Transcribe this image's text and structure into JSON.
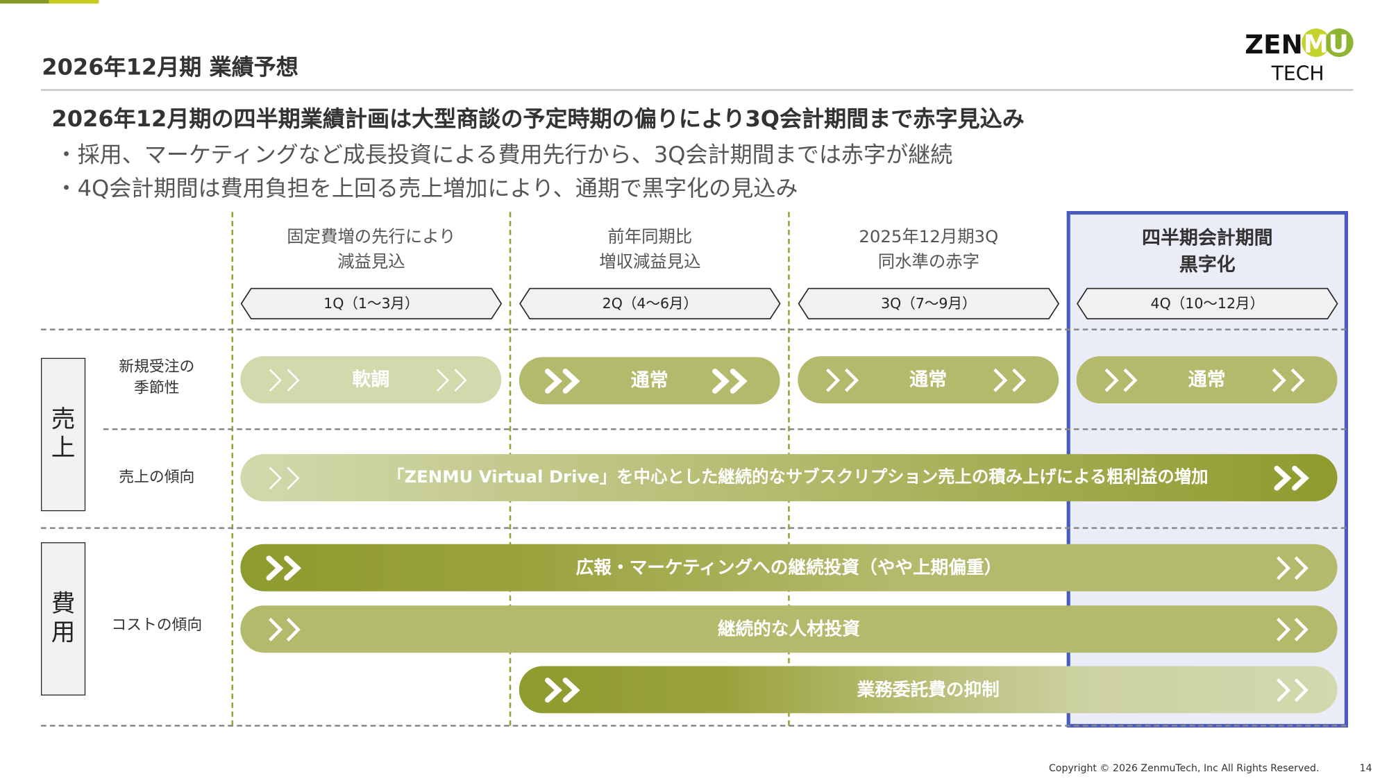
{
  "header": {
    "title": "2026年12月期 業績予想",
    "logo_text": "ZENMU TECH"
  },
  "summary": {
    "headline": "2026年12月期の四半期業績計画は大型商談の予定時期の偏りにより3Q会計期間まで赤字見込み",
    "bullets": [
      "・採用、マーケティングなど成長投資による費用先行から、3Q会計期間までは赤字が継続",
      "・4Q会計期間は費用負担を上回る売上増加により、通期で黒字化の見込み"
    ]
  },
  "columns": [
    {
      "note": [
        "固定費増の先行により",
        "減益見込"
      ],
      "quarter": "1Q（1～3月）"
    },
    {
      "note": [
        "前年同期比",
        "増収減益見込"
      ],
      "quarter": "2Q（4～6月）"
    },
    {
      "note": [
        "2025年12月期3Q",
        "同水準の赤字"
      ],
      "quarter": "3Q（7～9月）"
    },
    {
      "note": [
        "四半期会計期間",
        "黒字化"
      ],
      "quarter": "4Q（10～12月）",
      "highlighted": true
    }
  ],
  "sections": {
    "sales": {
      "label": [
        "売",
        "上"
      ],
      "rows": {
        "seasonality": [
          "新規受注の",
          "季節性"
        ],
        "trend": "売上の傾向"
      }
    },
    "costs": {
      "label": [
        "費",
        "用"
      ],
      "rows": {
        "trend": "コストの傾向"
      }
    }
  },
  "bars": {
    "seasonality": [
      "軟調",
      "通常",
      "通常",
      "通常"
    ],
    "sales_trend": "「ZENMU Virtual Drive」を中心とした継続的なサブスクリプション売上の積み上げによる粗利益の増加",
    "marketing": "広報・マーケティングへの継続投資（やや上期偏重）",
    "personnel": "継続的な人材投資",
    "outsourcing": "業務委託費の抑制"
  },
  "colors": {
    "accent_dark": "#8e9b2d",
    "accent_mid": "#b3ba6c",
    "accent_light": "#d3d9ad",
    "highlight_border": "#4a5bbf",
    "highlight_bg": "#eaedf7"
  },
  "footer": {
    "copyright": "Copyright © 2026 ZenmuTech, Inc All Rights Reserved.",
    "page": "14"
  }
}
